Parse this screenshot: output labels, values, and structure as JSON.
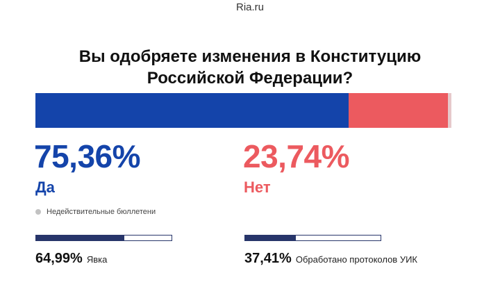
{
  "header": {
    "source": "Ria.ru"
  },
  "question": {
    "line1": "Вы одобряете изменения в Конституцию",
    "line2": "Российской Федерации?"
  },
  "results": {
    "yes": {
      "percent_text": "75,36%",
      "label": "Да",
      "share": 0.7536,
      "color": "#1444aa"
    },
    "no": {
      "percent_text": "23,74%",
      "label": "Нет",
      "share": 0.2374,
      "color": "#ec5a5f"
    },
    "invalid_color": "#e6c9cb"
  },
  "legend": {
    "invalid_label": "Недействительные бюллетени"
  },
  "stats": {
    "turnout": {
      "value_text": "64,99%",
      "label": "Явка",
      "fraction": 0.6499
    },
    "protocols": {
      "value_text": "37,41%",
      "label": "Обработано протоколов УИК",
      "fraction": 0.3741
    }
  }
}
